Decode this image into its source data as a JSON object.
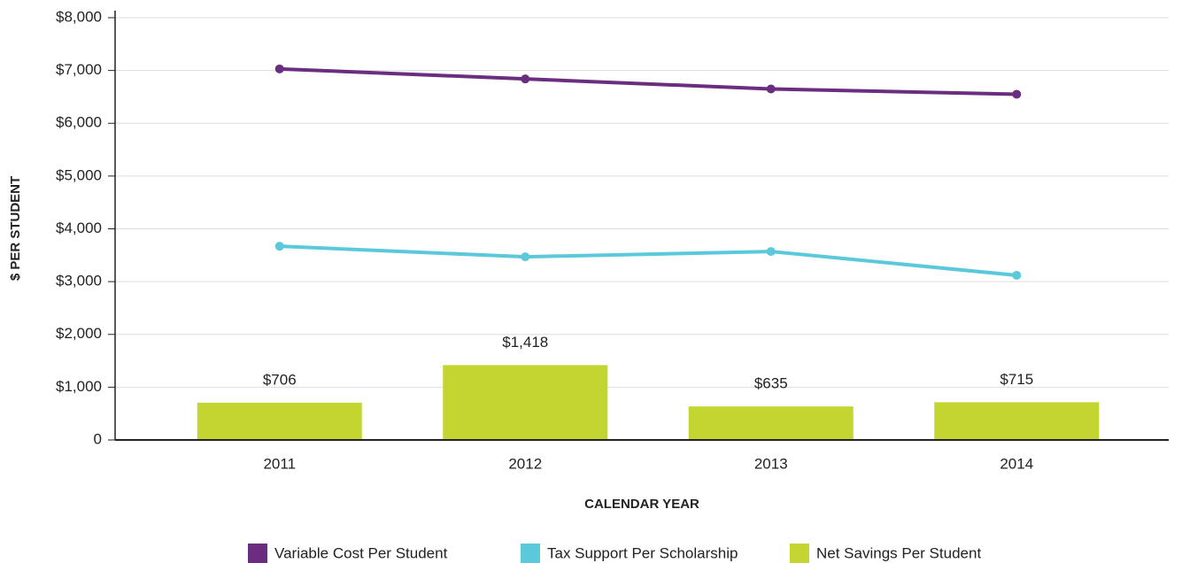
{
  "chart_data": {
    "type": "bar_line",
    "x_label": "CALENDAR YEAR",
    "y_label": "$ PER STUDENT",
    "categories": [
      "2011",
      "2012",
      "2013",
      "2014"
    ],
    "series": [
      {
        "name": "Variable Cost Per Student",
        "color": "#6b2d7f",
        "type": "line",
        "values": [
          7030,
          6840,
          6650,
          6550
        ]
      },
      {
        "name": "Tax Support Per Scholarship",
        "color": "#5bc8dc",
        "type": "line",
        "values": [
          3670,
          3470,
          3570,
          3120
        ]
      },
      {
        "name": "Net Savings Per Student",
        "color": "#c2d530",
        "type": "bar",
        "values": [
          706,
          1418,
          635,
          715
        ],
        "value_labels": [
          "$706",
          "$1,418",
          "$635",
          "$715"
        ]
      }
    ],
    "ylim": [
      0,
      8000
    ],
    "yticks": [
      0,
      {
        "value": 1000,
        "label": "$1,000"
      },
      {
        "value": 2000,
        "label": "$2,000"
      },
      {
        "value": 3000,
        "label": "$3,000"
      },
      {
        "value": 4000,
        "label": "$4,000"
      },
      {
        "value": 5000,
        "label": "$5,000"
      },
      {
        "value": 6000,
        "label": "$6,000"
      },
      {
        "value": 7000,
        "label": "$7,000"
      },
      {
        "value": 8000,
        "label": "$8,000"
      }
    ],
    "grid": true
  }
}
